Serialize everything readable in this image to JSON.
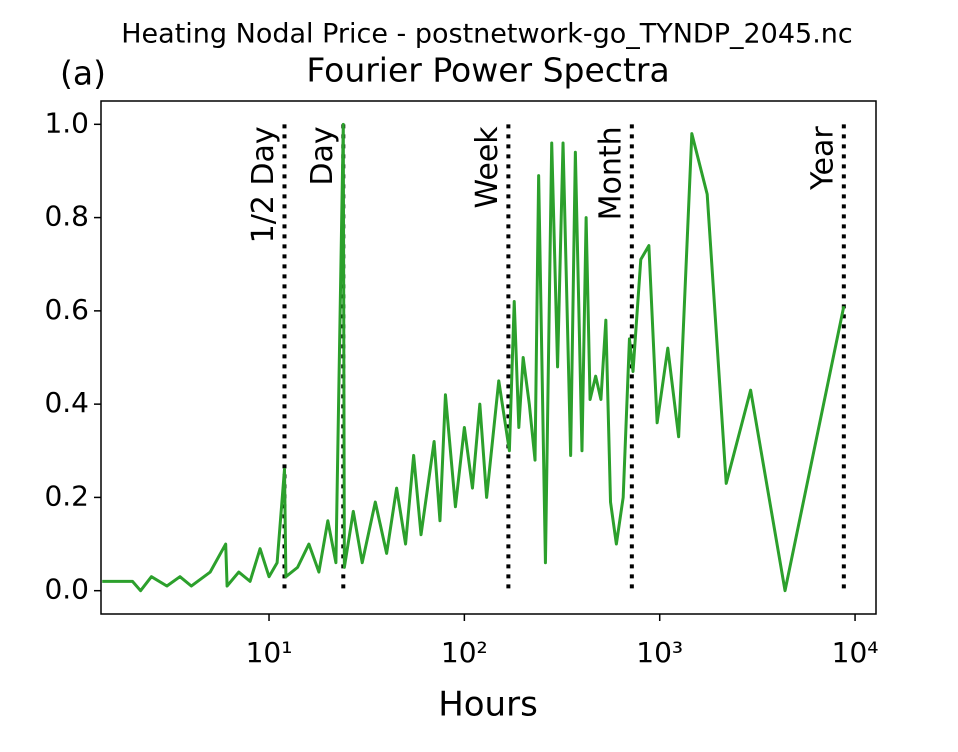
{
  "chart_data": {
    "type": "line",
    "suptitle": "Heating Nodal Price - postnetwork-go_TYNDP_2045.nc",
    "title": "Fourier Power Spectra",
    "panel_label": "(a)",
    "x_label": "Hours",
    "log_x": true,
    "xlim": [
      1.38,
      12800
    ],
    "ylim": [
      -0.05,
      1.05
    ],
    "xticks": [
      {
        "value": 10,
        "label": "10¹"
      },
      {
        "value": 100,
        "label": "10²"
      },
      {
        "value": 1000,
        "label": "10³"
      },
      {
        "value": 10000,
        "label": "10⁴"
      }
    ],
    "yticks": [
      {
        "value": 0,
        "label": "0.0"
      },
      {
        "value": 0.2,
        "label": "0.2"
      },
      {
        "value": 0.4,
        "label": "0.4"
      },
      {
        "value": 0.6,
        "label": "0.6"
      },
      {
        "value": 0.8,
        "label": "0.8"
      },
      {
        "value": 1,
        "label": "1.0"
      }
    ],
    "annotations": [
      {
        "x": 12,
        "label": "1/2 Day"
      },
      {
        "x": 24,
        "label": "Day"
      },
      {
        "x": 168,
        "label": "Week"
      },
      {
        "x": 720,
        "label": "Month"
      },
      {
        "x": 8760,
        "label": "Year"
      }
    ],
    "series": [
      {
        "color": "#2ca02c",
        "x": [
          1.4,
          2.0,
          2.2,
          2.5,
          3,
          3.5,
          4,
          5,
          6,
          6.1,
          7,
          8,
          9,
          10,
          11,
          12,
          12.2,
          14,
          16,
          18,
          20,
          22,
          24,
          24.3,
          27,
          30,
          35,
          40,
          45,
          50,
          55,
          60,
          70,
          75,
          80,
          90,
          100,
          110,
          120,
          130,
          150,
          170,
          180,
          190,
          200,
          215,
          230,
          240,
          260,
          280,
          300,
          320,
          350,
          370,
          400,
          420,
          440,
          470,
          500,
          530,
          560,
          600,
          650,
          700,
          730,
          800,
          880,
          970,
          1100,
          1250,
          1460,
          1750,
          2190,
          2920,
          4380,
          8760
        ],
        "values": [
          0.02,
          0.02,
          0.0,
          0.03,
          0.01,
          0.03,
          0.01,
          0.04,
          0.1,
          0.01,
          0.04,
          0.02,
          0.09,
          0.03,
          0.06,
          0.26,
          0.03,
          0.05,
          0.1,
          0.04,
          0.15,
          0.06,
          1.0,
          0.05,
          0.17,
          0.06,
          0.19,
          0.08,
          0.22,
          0.1,
          0.29,
          0.12,
          0.32,
          0.15,
          0.42,
          0.18,
          0.35,
          0.22,
          0.4,
          0.2,
          0.45,
          0.3,
          0.62,
          0.35,
          0.5,
          0.4,
          0.28,
          0.89,
          0.06,
          0.96,
          0.48,
          0.96,
          0.29,
          0.94,
          0.3,
          0.8,
          0.41,
          0.46,
          0.41,
          0.58,
          0.19,
          0.1,
          0.2,
          0.54,
          0.47,
          0.71,
          0.74,
          0.36,
          0.52,
          0.33,
          0.98,
          0.85,
          0.23,
          0.43,
          0.0,
          0.61
        ]
      }
    ]
  }
}
